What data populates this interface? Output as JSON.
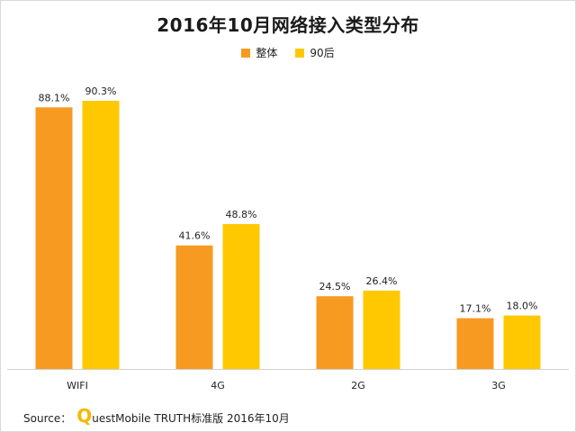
{
  "title": "2016年10月网络接入类型分布",
  "legend": {
    "items": [
      {
        "label": "整体",
        "color": "#f79a22"
      },
      {
        "label": "90后",
        "color": "#ffc800"
      }
    ]
  },
  "source": {
    "prefix": "Source：",
    "logo_letter": "Q",
    "text": "uestMobile TRUTH标准版 2016年10月"
  },
  "chart_data": {
    "type": "bar",
    "title": "2016年10月网络接入类型分布",
    "categories": [
      "WIFI",
      "4G",
      "2G",
      "3G"
    ],
    "series": [
      {
        "name": "整体",
        "values": [
          88.1,
          41.6,
          24.5,
          17.1
        ],
        "labels": [
          "88.1%",
          "41.6%",
          "24.5%",
          "17.1%"
        ],
        "color": "#f79a22"
      },
      {
        "name": "90后",
        "values": [
          90.3,
          48.8,
          26.4,
          18.0
        ],
        "labels": [
          "90.3%",
          "48.8%",
          "26.4%",
          "18.0%"
        ],
        "color": "#ffc800"
      }
    ],
    "unit": "%",
    "ylim": [
      0,
      100
    ],
    "xlabel": "",
    "ylabel": "",
    "grid": false,
    "legend_position": "top-center"
  }
}
